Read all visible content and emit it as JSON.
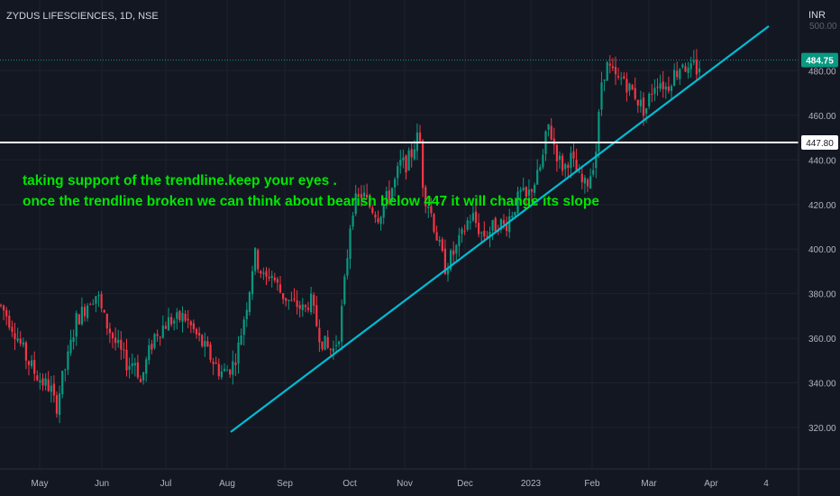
{
  "chart_data": {
    "type": "candlestick",
    "title": "ZYDUS LIFESCIENCES, 1D, NSE",
    "currency": "INR",
    "y_ticks": [
      320,
      340,
      360,
      380,
      400,
      420,
      440,
      460,
      480
    ],
    "y_top_partial_tick": "500.00",
    "ylim": [
      312,
      508
    ],
    "x_ticks": [
      "May",
      "Jun",
      "Jul",
      "Aug",
      "Sep",
      "Oct",
      "Nov",
      "Dec",
      "2023",
      "Feb",
      "Mar",
      "Apr",
      "4"
    ],
    "last_price": {
      "label": "484.75",
      "value": 484.75,
      "color": "#089981"
    },
    "horizontal_line": {
      "label": "447.80",
      "value": 447.8,
      "color": "#ffffff"
    },
    "trendline": {
      "start": {
        "date": "Aug 2022",
        "value": 318
      },
      "end": {
        "date": "Apr 2023",
        "value": 500
      },
      "color": "#00bcd4"
    },
    "annotation": {
      "lines": [
        "taking support of the trendline.keep your eyes .",
        "once the trendline broken we can think  about bearish below 447 it will change  its slope"
      ],
      "color": "#00e600"
    },
    "price_path": [
      [
        0,
        375
      ],
      [
        8,
        370
      ],
      [
        18,
        362
      ],
      [
        28,
        352
      ],
      [
        38,
        345
      ],
      [
        48,
        340
      ],
      [
        56,
        338
      ],
      [
        62,
        328
      ],
      [
        68,
        340
      ],
      [
        76,
        352
      ],
      [
        84,
        368
      ],
      [
        92,
        372
      ],
      [
        100,
        378
      ],
      [
        108,
        380
      ],
      [
        114,
        370
      ],
      [
        120,
        365
      ],
      [
        128,
        358
      ],
      [
        136,
        352
      ],
      [
        142,
        348
      ],
      [
        150,
        350
      ],
      [
        156,
        340
      ],
      [
        164,
        352
      ],
      [
        172,
        362
      ],
      [
        180,
        365
      ],
      [
        188,
        368
      ],
      [
        196,
        368
      ],
      [
        204,
        370
      ],
      [
        212,
        365
      ],
      [
        220,
        360
      ],
      [
        228,
        355
      ],
      [
        236,
        350
      ],
      [
        244,
        345
      ],
      [
        250,
        345
      ],
      [
        258,
        348
      ],
      [
        264,
        355
      ],
      [
        270,
        368
      ],
      [
        276,
        380
      ],
      [
        282,
        398
      ],
      [
        288,
        392
      ],
      [
        294,
        385
      ],
      [
        300,
        390
      ],
      [
        306,
        385
      ],
      [
        312,
        380
      ],
      [
        318,
        378
      ],
      [
        324,
        375
      ],
      [
        330,
        375
      ],
      [
        338,
        372
      ],
      [
        344,
        378
      ],
      [
        350,
        368
      ],
      [
        356,
        360
      ],
      [
        364,
        355
      ],
      [
        370,
        355
      ],
      [
        376,
        362
      ],
      [
        380,
        375
      ],
      [
        386,
        400
      ],
      [
        390,
        418
      ],
      [
        396,
        422
      ],
      [
        402,
        425
      ],
      [
        408,
        420
      ],
      [
        414,
        418
      ],
      [
        420,
        415
      ],
      [
        426,
        420
      ],
      [
        432,
        425
      ],
      [
        438,
        430
      ],
      [
        444,
        438
      ],
      [
        450,
        438
      ],
      [
        456,
        442
      ],
      [
        462,
        450
      ],
      [
        466,
        448
      ],
      [
        470,
        425
      ],
      [
        476,
        420
      ],
      [
        482,
        410
      ],
      [
        488,
        400
      ],
      [
        494,
        392
      ],
      [
        500,
        396
      ],
      [
        506,
        400
      ],
      [
        512,
        405
      ],
      [
        518,
        412
      ],
      [
        524,
        415
      ],
      [
        530,
        410
      ],
      [
        536,
        406
      ],
      [
        542,
        408
      ],
      [
        548,
        410
      ],
      [
        554,
        412
      ],
      [
        560,
        410
      ],
      [
        566,
        415
      ],
      [
        572,
        420
      ],
      [
        578,
        425
      ],
      [
        584,
        422
      ],
      [
        590,
        428
      ],
      [
        596,
        432
      ],
      [
        602,
        440
      ],
      [
        608,
        456
      ],
      [
        614,
        448
      ],
      [
        620,
        440
      ],
      [
        626,
        436
      ],
      [
        632,
        442
      ],
      [
        638,
        436
      ],
      [
        644,
        430
      ],
      [
        650,
        428
      ],
      [
        656,
        435
      ],
      [
        662,
        446
      ],
      [
        668,
        478
      ],
      [
        674,
        482
      ],
      [
        680,
        478
      ],
      [
        686,
        475
      ],
      [
        692,
        477
      ],
      [
        698,
        472
      ],
      [
        704,
        470
      ],
      [
        710,
        465
      ],
      [
        716,
        462
      ],
      [
        722,
        470
      ],
      [
        728,
        476
      ],
      [
        734,
        475
      ],
      [
        740,
        472
      ],
      [
        746,
        478
      ],
      [
        752,
        480
      ],
      [
        758,
        485
      ],
      [
        764,
        478
      ],
      [
        770,
        482
      ],
      [
        774,
        480
      ],
      [
        778,
        484.75
      ]
    ]
  }
}
